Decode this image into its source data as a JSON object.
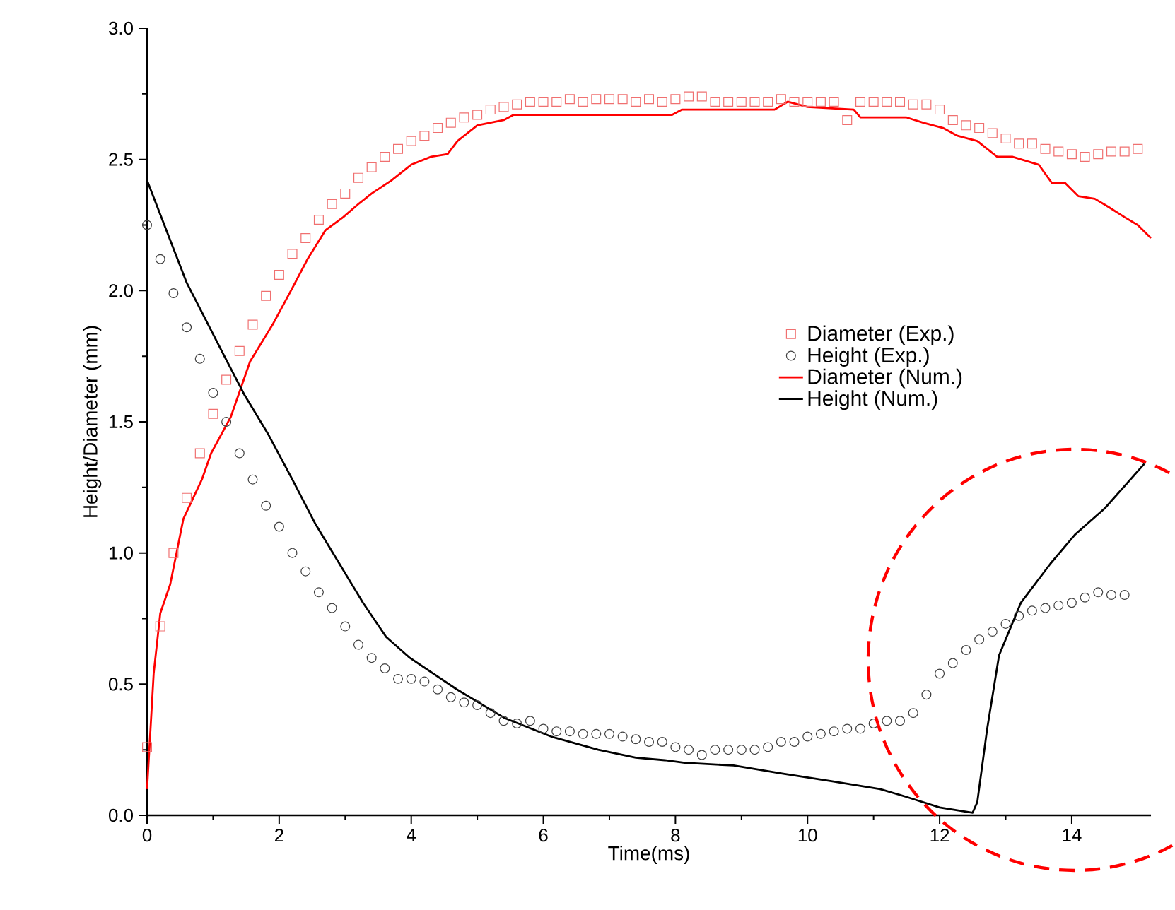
{
  "chart_data": {
    "type": "line",
    "xlabel": "Time(ms)",
    "ylabel": "Height/Diameter (mm)",
    "xlim": [
      0,
      15.2
    ],
    "ylim": [
      0,
      3.0
    ],
    "xticks": [
      0,
      2,
      4,
      6,
      8,
      10,
      12,
      14
    ],
    "yticks": [
      {
        "value": 0,
        "label": "0.0"
      },
      0.5,
      {
        "value": 1,
        "label": "1.0"
      },
      1.5,
      {
        "value": 2,
        "label": "2.0"
      },
      2.5,
      {
        "value": 3,
        "label": "3.0"
      }
    ],
    "grid": false,
    "legend": "right",
    "series": [
      {
        "name": "Diameter (Exp.)",
        "type": "scatter",
        "marker": "square",
        "color": "#f07070",
        "x": [
          0,
          0.2,
          0.4,
          0.6,
          0.8,
          1,
          1.2,
          1.4,
          1.6,
          1.8,
          2,
          2.2,
          2.4,
          2.6,
          2.8,
          3,
          3.2,
          3.4,
          3.6,
          3.8,
          4,
          4.2,
          4.4,
          4.6,
          4.8,
          5,
          5.2,
          5.4,
          5.6,
          5.8,
          6,
          6.2,
          6.4,
          6.6,
          6.8,
          7,
          7.2,
          7.4,
          7.6,
          7.8,
          8,
          8.2,
          8.4,
          8.6,
          8.8,
          9,
          9.2,
          9.4,
          9.6,
          9.8,
          10,
          10.2,
          10.4,
          10.6,
          10.8,
          11,
          11.2,
          11.4,
          11.6,
          11.8,
          12,
          12.2,
          12.4,
          12.6,
          12.8,
          13,
          13.2,
          13.4,
          13.6,
          13.8,
          14,
          14.2,
          14.4,
          14.6,
          14.8,
          15
        ],
        "values": [
          0.26,
          0.72,
          1.0,
          1.21,
          1.38,
          1.53,
          1.66,
          1.77,
          1.87,
          1.98,
          2.06,
          2.14,
          2.2,
          2.27,
          2.33,
          2.37,
          2.43,
          2.47,
          2.51,
          2.54,
          2.57,
          2.59,
          2.62,
          2.64,
          2.66,
          2.67,
          2.69,
          2.7,
          2.71,
          2.72,
          2.72,
          2.72,
          2.73,
          2.72,
          2.73,
          2.73,
          2.73,
          2.72,
          2.73,
          2.72,
          2.73,
          2.74,
          2.74,
          2.72,
          2.72,
          2.72,
          2.72,
          2.72,
          2.73,
          2.72,
          2.72,
          2.72,
          2.72,
          2.65,
          2.72,
          2.72,
          2.72,
          2.72,
          2.71,
          2.71,
          2.69,
          2.65,
          2.63,
          2.62,
          2.6,
          2.58,
          2.56,
          2.56,
          2.54,
          2.53,
          2.52,
          2.51,
          2.52,
          2.53,
          2.53,
          2.54
        ]
      },
      {
        "name": "Height (Exp.)",
        "type": "scatter",
        "marker": "circle",
        "color": "#404040",
        "x": [
          0,
          0.2,
          0.4,
          0.6,
          0.8,
          1,
          1.2,
          1.4,
          1.6,
          1.8,
          2,
          2.2,
          2.4,
          2.6,
          2.8,
          3,
          3.2,
          3.4,
          3.6,
          3.8,
          4,
          4.2,
          4.4,
          4.6,
          4.8,
          5,
          5.2,
          5.4,
          5.6,
          5.8,
          6,
          6.2,
          6.4,
          6.6,
          6.8,
          7,
          7.2,
          7.4,
          7.6,
          7.8,
          8,
          8.2,
          8.4,
          8.6,
          8.8,
          9,
          9.2,
          9.4,
          9.6,
          9.8,
          10,
          10.2,
          10.4,
          10.6,
          10.8,
          11,
          11.2,
          11.4,
          11.6,
          11.8,
          12,
          12.2,
          12.4,
          12.6,
          12.8,
          13,
          13.2,
          13.4,
          13.6,
          13.8,
          14,
          14.2,
          14.4,
          14.6,
          14.8
        ],
        "values": [
          2.25,
          2.12,
          1.99,
          1.86,
          1.74,
          1.61,
          1.5,
          1.38,
          1.28,
          1.18,
          1.1,
          1.0,
          0.93,
          0.85,
          0.79,
          0.72,
          0.65,
          0.6,
          0.56,
          0.52,
          0.52,
          0.51,
          0.48,
          0.45,
          0.43,
          0.42,
          0.39,
          0.36,
          0.35,
          0.36,
          0.33,
          0.32,
          0.32,
          0.31,
          0.31,
          0.31,
          0.3,
          0.29,
          0.28,
          0.28,
          0.26,
          0.25,
          0.23,
          0.25,
          0.25,
          0.25,
          0.25,
          0.26,
          0.28,
          0.28,
          0.3,
          0.31,
          0.32,
          0.33,
          0.33,
          0.35,
          0.36,
          0.36,
          0.39,
          0.46,
          0.54,
          0.58,
          0.63,
          0.67,
          0.7,
          0.73,
          0.76,
          0.78,
          0.79,
          0.8,
          0.81,
          0.83,
          0.85,
          0.84,
          0.84
        ]
      },
      {
        "name": "Diameter (Num.)",
        "marker": "none",
        "color": "#ff0000",
        "x": [
          0,
          0.1,
          0.2,
          0.35,
          0.55,
          0.83,
          0.97,
          1.27,
          1.56,
          1.9,
          2.2,
          2.43,
          2.7,
          2.97,
          3.2,
          3.4,
          3.7,
          4.0,
          4.3,
          4.55,
          4.7,
          5.0,
          5.4,
          5.55,
          7.95,
          8.1,
          9.5,
          9.7,
          10.0,
          10.7,
          10.8,
          11.5,
          11.75,
          12.05,
          12.27,
          12.57,
          12.87,
          13.1,
          13.5,
          13.7,
          13.9,
          14.1,
          14.35,
          14.55,
          14.8,
          15.0,
          15.2
        ],
        "values": [
          0.1,
          0.54,
          0.77,
          0.88,
          1.13,
          1.28,
          1.38,
          1.52,
          1.73,
          1.87,
          2.01,
          2.12,
          2.23,
          2.28,
          2.33,
          2.37,
          2.42,
          2.48,
          2.51,
          2.52,
          2.57,
          2.63,
          2.65,
          2.67,
          2.67,
          2.69,
          2.69,
          2.72,
          2.7,
          2.69,
          2.66,
          2.66,
          2.64,
          2.62,
          2.59,
          2.57,
          2.51,
          2.51,
          2.48,
          2.41,
          2.41,
          2.36,
          2.35,
          2.32,
          2.28,
          2.25,
          2.2
        ]
      },
      {
        "name": "Height (Num.)",
        "marker": "none",
        "color": "#000000",
        "x": [
          0,
          0.6,
          1.15,
          1.48,
          1.84,
          2.2,
          2.55,
          2.91,
          3.27,
          3.62,
          3.98,
          4.69,
          5.42,
          6.12,
          6.83,
          7.4,
          7.84,
          8.14,
          8.88,
          9.6,
          10.36,
          11.1,
          11.5,
          12.0,
          12.5,
          12.57,
          12.72,
          12.9,
          13.23,
          13.68,
          14.05,
          14.5,
          15.1
        ],
        "values": [
          2.42,
          2.03,
          1.76,
          1.6,
          1.45,
          1.28,
          1.11,
          0.96,
          0.81,
          0.68,
          0.6,
          0.48,
          0.37,
          0.3,
          0.25,
          0.22,
          0.21,
          0.2,
          0.19,
          0.16,
          0.13,
          0.1,
          0.07,
          0.03,
          0.01,
          0.05,
          0.33,
          0.61,
          0.81,
          0.96,
          1.07,
          1.17,
          1.34
        ]
      }
    ]
  }
}
